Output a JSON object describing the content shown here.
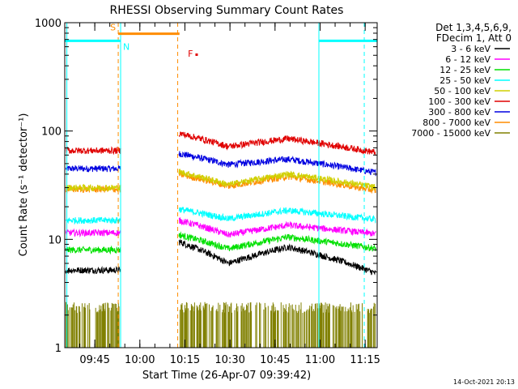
{
  "chart_data": {
    "type": "line",
    "title": "RHESSI Observing Summary Count Rates",
    "xlabel": "Start Time (26-Apr-07 09:39:42)",
    "ylabel": "Count Rate (s⁻¹ detector⁻¹)",
    "yscale": "log",
    "ylim": [
      1,
      1000
    ],
    "y_tick_labels": [
      "1",
      "10",
      "100",
      "1000"
    ],
    "y_tick_values": [
      1,
      10,
      100,
      1000
    ],
    "xlim_minutes": [
      -5,
      99
    ],
    "x_tick_labels": [
      "09:45",
      "10:00",
      "10:15",
      "10:30",
      "10:45",
      "11:00",
      "11:15"
    ],
    "x_tick_minutes": [
      5,
      20,
      35,
      50,
      65,
      80,
      95
    ],
    "legend_header": [
      "Det 1,3,4,5,6,9,",
      "FDecim 1, Att 0"
    ],
    "series": [
      {
        "name": "3 - 6 keV",
        "color": "#000000",
        "pre": 5.2,
        "post_start": 9.5,
        "post_dip": 6.0,
        "post_peak": 8.5,
        "post_end": 4.8
      },
      {
        "name": "6 - 12 keV",
        "color": "#ff00ff",
        "pre": 11.5,
        "post_start": 15.0,
        "post_dip": 11.0,
        "post_peak": 13.5,
        "post_end": 11.2
      },
      {
        "name": "12 - 25 keV",
        "color": "#00e000",
        "pre": 8.0,
        "post_start": 11.0,
        "post_dip": 8.2,
        "post_peak": 10.5,
        "post_end": 8.2
      },
      {
        "name": "25 - 50 keV",
        "color": "#00ffff",
        "pre": 15.0,
        "post_start": 19.0,
        "post_dip": 15.5,
        "post_peak": 18.5,
        "post_end": 15.2
      },
      {
        "name": "50 - 100 keV",
        "color": "#d0d000",
        "pre": 30.0,
        "post_start": 42.0,
        "post_dip": 32.0,
        "post_peak": 40.0,
        "post_end": 30.0
      },
      {
        "name": "100 - 300 keV",
        "color": "#e00000",
        "pre": 66.0,
        "post_start": 95.0,
        "post_dip": 72.0,
        "post_peak": 85.0,
        "post_end": 63.0
      },
      {
        "name": "300 - 800 keV",
        "color": "#0000e0",
        "pre": 45.0,
        "post_start": 62.0,
        "post_dip": 49.0,
        "post_peak": 55.0,
        "post_end": 41.0
      },
      {
        "name": "800 - 7000 keV",
        "color": "#ff8c00",
        "pre": 29.0,
        "post_start": 40.0,
        "post_dip": 31.0,
        "post_peak": 38.0,
        "post_end": 28.0
      },
      {
        "name": "7000 - 15000 keV",
        "color": "#808000",
        "pre": 2.2,
        "post_start": 2.2,
        "post_dip": 2.2,
        "post_peak": 2.6,
        "post_end": 2.2
      }
    ],
    "data_gaps_minutes": [
      [
        13.7,
        33.0
      ]
    ],
    "flags": [
      {
        "label": "S",
        "color": "#ff8c00",
        "start_minute": 12.8,
        "end_minute": 33.2,
        "level": 790
      },
      {
        "label": "N",
        "color": "#00ffff",
        "start_minute": -5,
        "end_minute": 13.6,
        "level": 680
      },
      {
        "label": "N",
        "color": "#00ffff",
        "start_minute": 79.6,
        "end_minute": 99,
        "level": 680
      },
      {
        "label": "F",
        "color": "#e00000",
        "at_minute": 38.5,
        "level": 520
      }
    ],
    "vertical_markers": [
      {
        "minute": -4.3,
        "color": "#00ffff",
        "style": "solid"
      },
      {
        "minute": 13.6,
        "color": "#00ffff",
        "style": "solid"
      },
      {
        "minute": 12.8,
        "color": "#ff8c00",
        "style": "dashed"
      },
      {
        "minute": 32.6,
        "color": "#ff8c00",
        "style": "dashed"
      },
      {
        "minute": 79.6,
        "color": "#00ffff",
        "style": "solid"
      },
      {
        "minute": 94.7,
        "color": "#00ffff",
        "style": "dashed"
      }
    ]
  },
  "footer": {
    "timestamp": "14-Oct-2021 20:13"
  }
}
